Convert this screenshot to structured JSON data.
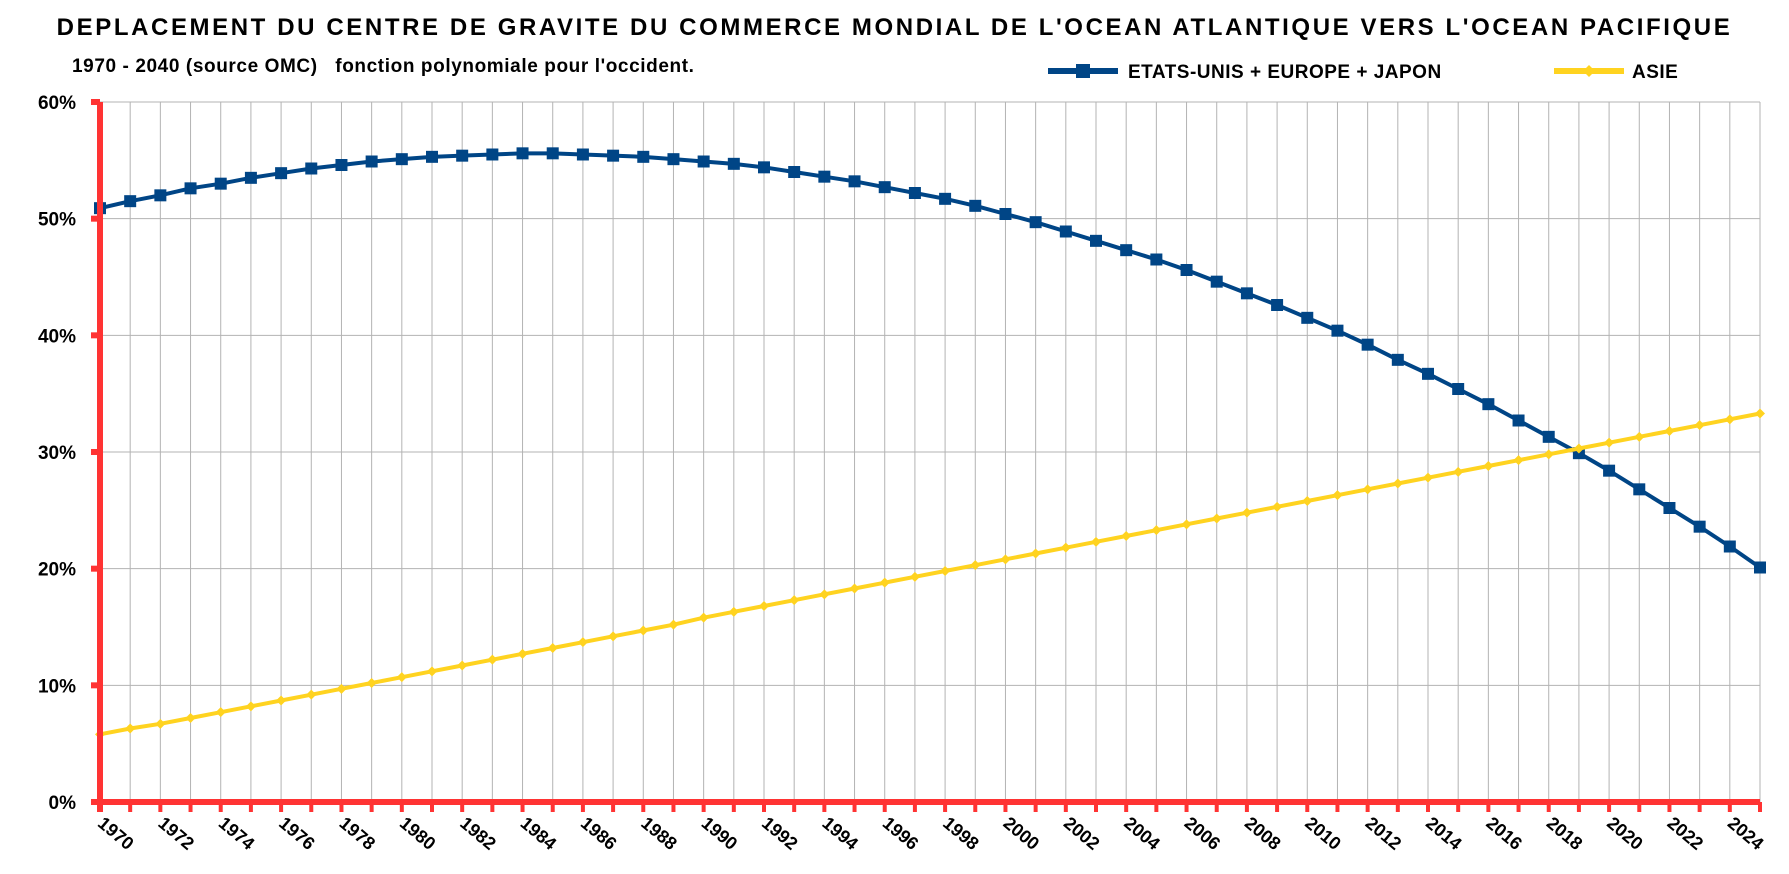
{
  "chart_data": {
    "type": "line",
    "title": "DEPLACEMENT DU CENTRE DE GRAVITE DU COMMERCE MONDIAL DE L'OCEAN ATLANTIQUE VERS L'OCEAN PACIFIQUE",
    "subtitle": "1970 - 2040 (source OMC)   fonction polynomiale pour l'occident.",
    "xlabel": "",
    "ylabel": "",
    "x": [
      1970,
      1971,
      1972,
      1973,
      1974,
      1975,
      1976,
      1977,
      1978,
      1979,
      1980,
      1981,
      1982,
      1983,
      1984,
      1985,
      1986,
      1987,
      1988,
      1989,
      1990,
      1991,
      1992,
      1993,
      1994,
      1995,
      1996,
      1997,
      1998,
      1999,
      2000,
      2001,
      2002,
      2003,
      2004,
      2005,
      2006,
      2007,
      2008,
      2009,
      2010,
      2011,
      2012,
      2013,
      2014,
      2015,
      2016,
      2017,
      2018,
      2019,
      2020,
      2021,
      2022,
      2023,
      2024,
      2025
    ],
    "x_tick_labels": [
      "1970",
      "1972",
      "1974",
      "1976",
      "1978",
      "1980",
      "1982",
      "1984",
      "1986",
      "1988",
      "1990",
      "1992",
      "1994",
      "1996",
      "1998",
      "2000",
      "2002",
      "2004",
      "2006",
      "2008",
      "2010",
      "2012",
      "2014",
      "2016",
      "2018",
      "2020",
      "2022",
      "2024"
    ],
    "y_tick_labels": [
      "0%",
      "10%",
      "20%",
      "30%",
      "40%",
      "50%",
      "60%"
    ],
    "ylim": [
      0,
      60
    ],
    "xlim": [
      1970,
      2025
    ],
    "grid": true,
    "legend_position": "top-right",
    "series": [
      {
        "name": "ETATS-UNIS + EUROPE + JAPON",
        "color": "#004586",
        "marker": "square",
        "values": [
          50.9,
          51.5,
          52.0,
          52.6,
          53.0,
          53.5,
          53.9,
          54.3,
          54.6,
          54.9,
          55.1,
          55.3,
          55.4,
          55.5,
          55.6,
          55.6,
          55.5,
          55.4,
          55.3,
          55.1,
          54.9,
          54.7,
          54.4,
          54.0,
          53.6,
          53.2,
          52.7,
          52.2,
          51.7,
          51.1,
          50.4,
          49.7,
          48.9,
          48.1,
          47.3,
          46.5,
          45.6,
          44.6,
          43.6,
          42.6,
          41.5,
          40.4,
          39.2,
          37.9,
          36.7,
          35.4,
          34.1,
          32.7,
          31.3,
          29.9,
          28.4,
          26.8,
          25.2,
          23.6,
          21.9,
          20.1
        ]
      },
      {
        "name": "ASIE",
        "color": "#ffd320",
        "marker": "diamond",
        "values": [
          5.8,
          6.3,
          6.7,
          7.2,
          7.7,
          8.2,
          8.7,
          9.2,
          9.7,
          10.2,
          10.7,
          11.2,
          11.7,
          12.2,
          12.7,
          13.2,
          13.7,
          14.2,
          14.7,
          15.2,
          15.8,
          16.3,
          16.8,
          17.3,
          17.8,
          18.3,
          18.8,
          19.3,
          19.8,
          20.3,
          20.8,
          21.3,
          21.8,
          22.3,
          22.8,
          23.3,
          23.8,
          24.3,
          24.8,
          25.3,
          25.8,
          26.3,
          26.8,
          27.3,
          27.8,
          28.3,
          28.8,
          29.3,
          29.8,
          30.3,
          30.8,
          31.3,
          31.8,
          32.3,
          32.8,
          33.3
        ]
      }
    ],
    "colors": {
      "axis": "#ff3333",
      "grid": "#b3b3b3"
    }
  }
}
